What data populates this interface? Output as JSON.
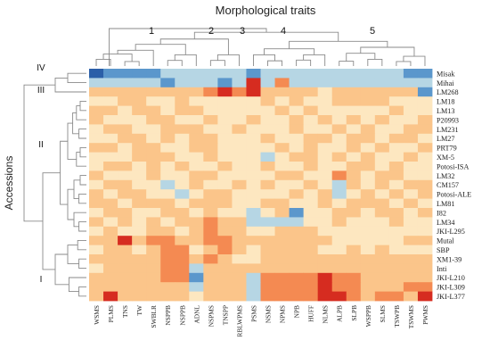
{
  "chart_data": {
    "type": "heatmap",
    "title": "Morphological traits",
    "ylabel": "Accessions",
    "columns": [
      "WSMS",
      "PLMS",
      "TNS",
      "TW",
      "SWBLR",
      "NSPPB",
      "NSPPB",
      "ADNL",
      "NSPMS",
      "TNSPP",
      "RBLWPMS",
      "PSMS",
      "NSMS",
      "NPMS",
      "NPB",
      "HUFF",
      "NLMS",
      "ALPB",
      "SLPB",
      "WSPPB",
      "SLMS",
      "TSWPB",
      "TSWMS",
      "PWMS"
    ],
    "rows": [
      "Misak",
      "Mihai",
      "LM268",
      "LM18",
      "LM13",
      "P20993",
      "LM231",
      "LM27",
      "PRT79",
      "XM-5",
      "Potosi-ISA",
      "LM32",
      "CM157",
      "Potosi-ALE",
      "LM81",
      "I82",
      "LM34",
      "JKI-L295",
      "Mutal",
      "SBP",
      "XM1-39",
      "Inti",
      "JKI-L210",
      "JKI-L309",
      "JKI-L377"
    ],
    "column_cluster_labels": [
      "1",
      "2",
      "3",
      "4",
      "5"
    ],
    "row_cluster_labels": [
      "IV",
      "III",
      "II",
      "I"
    ],
    "values": [
      [
        -3,
        -2,
        -2,
        -2,
        -2,
        -1,
        -1,
        -1,
        -1,
        -1,
        -1,
        -2,
        -1,
        -1,
        -1,
        -1,
        -1,
        -1,
        -1,
        -1,
        -1,
        -1,
        -2,
        -2
      ],
      [
        -1,
        -1,
        -1,
        -1,
        -1,
        -2,
        -1,
        -1,
        -1,
        -2,
        -1,
        3,
        -1,
        2,
        -1,
        -1,
        -1,
        -1,
        -1,
        -1,
        -1,
        -1,
        -1,
        -1
      ],
      [
        1,
        1,
        1,
        1,
        1,
        1,
        1,
        1,
        2,
        3,
        2,
        3,
        1,
        1,
        1,
        1,
        0,
        1,
        1,
        1,
        1,
        1,
        1,
        -2
      ],
      [
        0,
        0,
        1,
        1,
        0,
        0,
        1,
        0,
        0,
        0,
        0,
        0,
        1,
        0,
        1,
        0,
        0,
        1,
        1,
        1,
        1,
        0,
        0,
        0
      ],
      [
        1,
        1,
        0,
        1,
        1,
        0,
        1,
        1,
        0,
        0,
        0,
        0,
        0,
        1,
        0,
        1,
        0,
        0,
        0,
        0,
        0,
        1,
        0,
        0
      ],
      [
        1,
        0,
        0,
        0,
        1,
        1,
        0,
        0,
        1,
        0,
        0,
        1,
        0,
        0,
        1,
        0,
        1,
        0,
        1,
        0,
        1,
        0,
        0,
        1
      ],
      [
        0,
        1,
        1,
        0,
        0,
        1,
        1,
        1,
        0,
        0,
        1,
        0,
        0,
        0,
        1,
        0,
        0,
        1,
        0,
        1,
        0,
        0,
        1,
        1
      ],
      [
        0,
        0,
        1,
        1,
        0,
        1,
        0,
        1,
        1,
        0,
        0,
        0,
        1,
        0,
        0,
        1,
        1,
        0,
        1,
        1,
        0,
        1,
        1,
        0
      ],
      [
        1,
        1,
        0,
        1,
        1,
        0,
        0,
        1,
        1,
        0,
        0,
        0,
        0,
        1,
        0,
        1,
        0,
        0,
        1,
        0,
        1,
        0,
        0,
        1
      ],
      [
        0,
        0,
        0,
        1,
        1,
        1,
        0,
        0,
        1,
        0,
        0,
        0,
        -1,
        0,
        1,
        1,
        0,
        1,
        0,
        1,
        0,
        0,
        1,
        0
      ],
      [
        0,
        1,
        1,
        0,
        1,
        0,
        1,
        0,
        0,
        1,
        0,
        0,
        1,
        0,
        0,
        1,
        0,
        0,
        1,
        1,
        0,
        1,
        0,
        0
      ],
      [
        1,
        0,
        0,
        0,
        1,
        0,
        0,
        1,
        1,
        0,
        0,
        0,
        0,
        1,
        1,
        0,
        0,
        2,
        1,
        0,
        1,
        1,
        0,
        0
      ],
      [
        0,
        1,
        1,
        0,
        0,
        -1,
        0,
        1,
        0,
        0,
        1,
        0,
        1,
        0,
        0,
        1,
        0,
        -1,
        1,
        0,
        1,
        0,
        1,
        1
      ],
      [
        1,
        0,
        1,
        1,
        0,
        0,
        -1,
        0,
        1,
        1,
        0,
        0,
        0,
        0,
        1,
        0,
        1,
        -1,
        0,
        1,
        0,
        1,
        0,
        1
      ],
      [
        1,
        1,
        0,
        1,
        1,
        1,
        0,
        1,
        1,
        1,
        0,
        0,
        1,
        1,
        0,
        0,
        1,
        0,
        1,
        1,
        1,
        0,
        1,
        0
      ],
      [
        0,
        1,
        1,
        0,
        0,
        1,
        1,
        0,
        1,
        0,
        0,
        -1,
        0,
        1,
        -2,
        0,
        0,
        1,
        1,
        0,
        1,
        1,
        0,
        1
      ],
      [
        1,
        0,
        1,
        0,
        1,
        0,
        1,
        1,
        2,
        1,
        1,
        -1,
        -1,
        -1,
        -1,
        0,
        0,
        1,
        0,
        0,
        0,
        1,
        0,
        0
      ],
      [
        0,
        1,
        0,
        0,
        1,
        1,
        0,
        1,
        2,
        1,
        1,
        0,
        0,
        1,
        1,
        1,
        0,
        0,
        0,
        0,
        0,
        0,
        0,
        0
      ],
      [
        1,
        1,
        3,
        1,
        2,
        2,
        1,
        1,
        2,
        2,
        1,
        1,
        1,
        1,
        1,
        1,
        1,
        0,
        0,
        0,
        0,
        0,
        1,
        1
      ],
      [
        0,
        1,
        1,
        0,
        1,
        2,
        2,
        0,
        1,
        2,
        1,
        0,
        1,
        1,
        1,
        1,
        0,
        0,
        1,
        0,
        1,
        0,
        0,
        0
      ],
      [
        1,
        1,
        1,
        1,
        1,
        2,
        2,
        1,
        2,
        1,
        0,
        0,
        1,
        1,
        1,
        1,
        1,
        1,
        1,
        1,
        1,
        1,
        1,
        1
      ],
      [
        0,
        1,
        1,
        1,
        1,
        2,
        2,
        -1,
        1,
        1,
        1,
        1,
        1,
        1,
        1,
        1,
        1,
        1,
        1,
        1,
        1,
        1,
        1,
        1
      ],
      [
        1,
        1,
        1,
        1,
        1,
        2,
        2,
        -2,
        1,
        1,
        1,
        -1,
        2,
        2,
        2,
        2,
        3,
        2,
        2,
        1,
        1,
        1,
        1,
        1
      ],
      [
        1,
        1,
        1,
        1,
        1,
        1,
        1,
        -1,
        1,
        1,
        1,
        -1,
        2,
        2,
        2,
        2,
        3,
        2,
        2,
        1,
        1,
        1,
        2,
        2
      ],
      [
        1,
        3,
        1,
        1,
        1,
        1,
        1,
        0,
        1,
        1,
        1,
        -1,
        2,
        2,
        2,
        2,
        3,
        3,
        2,
        1,
        2,
        2,
        1,
        3
      ]
    ]
  }
}
